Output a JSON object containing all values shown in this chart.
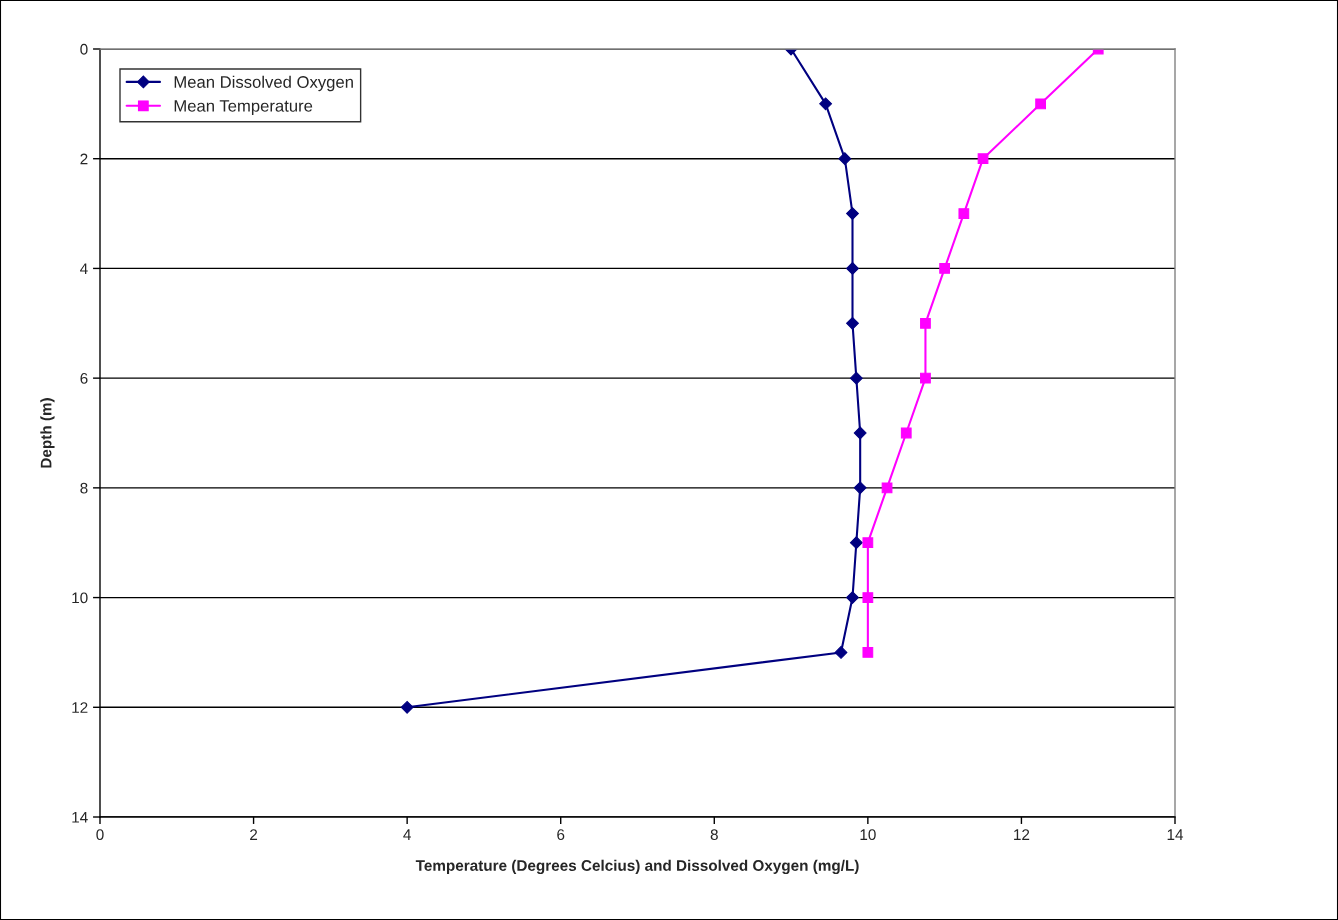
{
  "chart_data": {
    "type": "line",
    "xlabel": "Temperature (Degrees Celcius) and Dissolved Oxygen (mg/L)",
    "ylabel": "Depth (m)",
    "xlim": [
      0,
      14
    ],
    "xticks": [
      0,
      2,
      4,
      6,
      8,
      10,
      12,
      14
    ],
    "ylim": [
      14,
      0
    ],
    "yticks": [
      0,
      2,
      4,
      6,
      8,
      10,
      12,
      14
    ],
    "grid": "y",
    "legend": "top left",
    "series": [
      {
        "name": "Mean Dissolved Oxygen",
        "color": "#000080",
        "marker": "diamond",
        "x": [
          9.0,
          9.45,
          9.7,
          9.8,
          9.8,
          9.8,
          9.85,
          9.9,
          9.9,
          9.85,
          9.8,
          9.65,
          4.0
        ],
        "values": [
          0,
          1,
          2,
          3,
          4,
          5,
          6,
          7,
          8,
          9,
          10,
          11,
          12
        ]
      },
      {
        "name": "Mean Temperature",
        "color": "#ff00ff",
        "marker": "square",
        "x": [
          13.0,
          12.25,
          11.5,
          11.25,
          11.0,
          10.75,
          10.75,
          10.5,
          10.25,
          10.0,
          10.0,
          10.0
        ],
        "values": [
          0,
          1,
          2,
          3,
          4,
          5,
          6,
          7,
          8,
          9,
          10,
          11
        ]
      }
    ]
  }
}
